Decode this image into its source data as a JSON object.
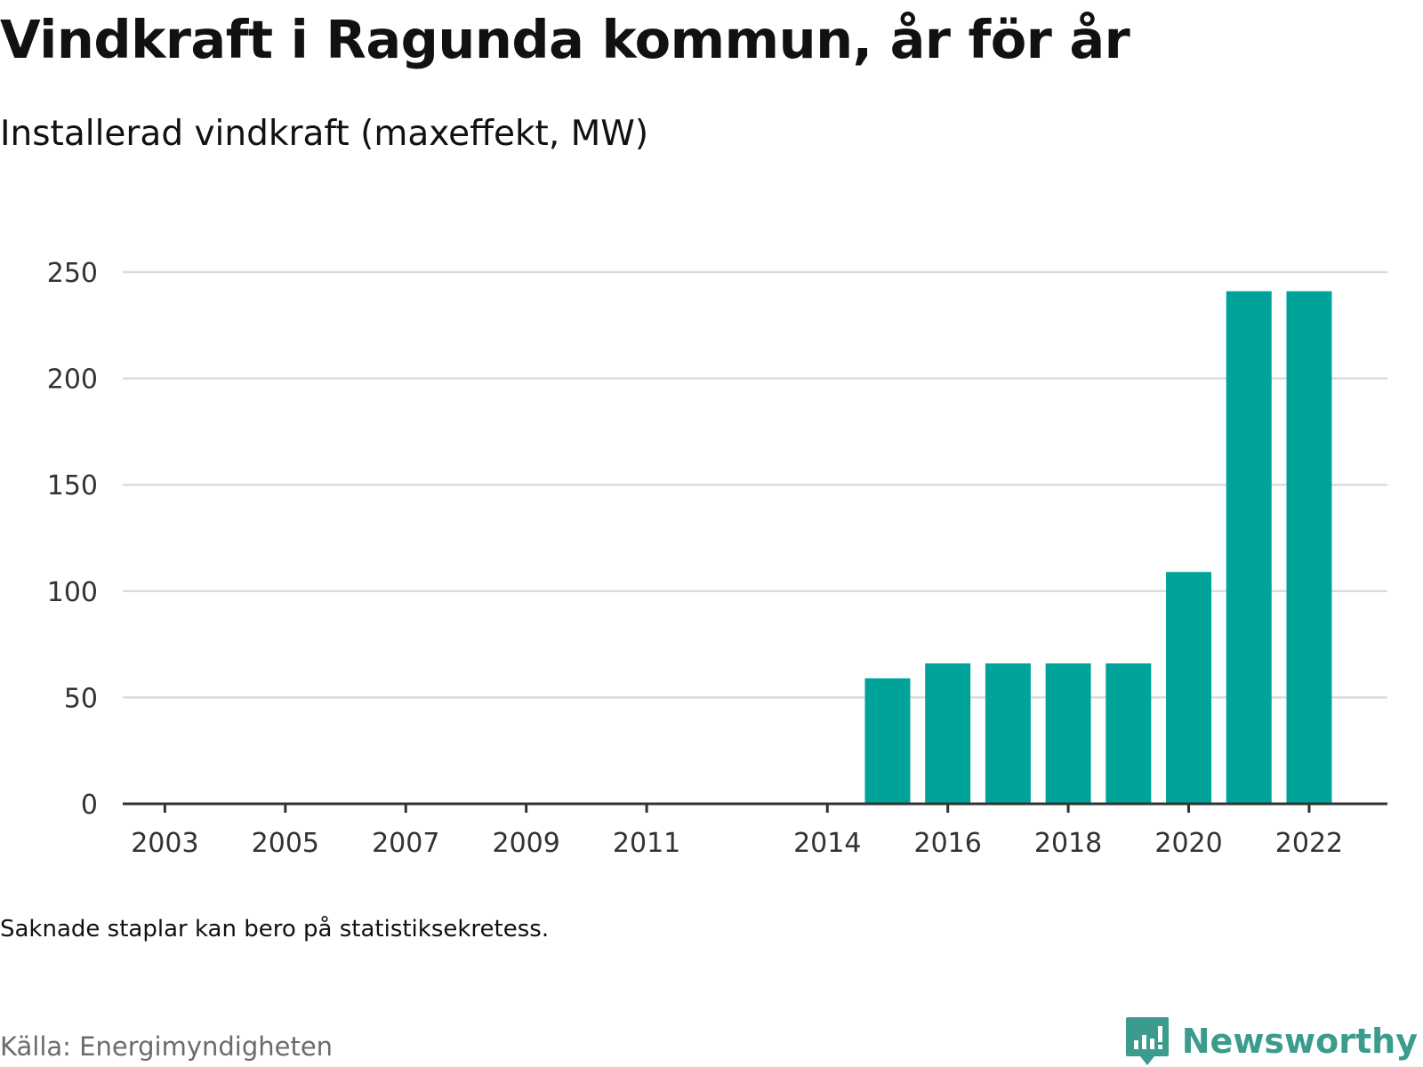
{
  "title": "Vindkraft i Ragunda kommun, år för år",
  "subtitle": "Installerad vindkraft (maxeffekt, MW)",
  "note": "Saknade staplar kan bero på statistiksekretess.",
  "source": "Källa: Energimyndigheten",
  "brand": {
    "name": "Newsworthy",
    "icon": "newsworthy-logo-icon",
    "color": "#3b9c8e"
  },
  "colors": {
    "bar": "#00a39a",
    "grid": "#dcdcdc",
    "axis": "#333333"
  },
  "chart_data": {
    "type": "bar",
    "title": "Vindkraft i Ragunda kommun, år för år",
    "subtitle": "Installerad vindkraft (maxeffekt, MW)",
    "xlabel": "",
    "ylabel": "",
    "ylim": [
      0,
      250
    ],
    "y_ticks": [
      0,
      50,
      100,
      150,
      200,
      250
    ],
    "x_range": [
      2002.3,
      2023.3
    ],
    "x_ticks": [
      2003,
      2005,
      2007,
      2009,
      2011,
      2014,
      2016,
      2018,
      2020,
      2022
    ],
    "grid": true,
    "categories": [
      2015,
      2016,
      2017,
      2018,
      2019,
      2020,
      2021,
      2022
    ],
    "values": [
      59,
      66,
      66,
      66,
      66,
      109,
      241,
      241
    ]
  }
}
